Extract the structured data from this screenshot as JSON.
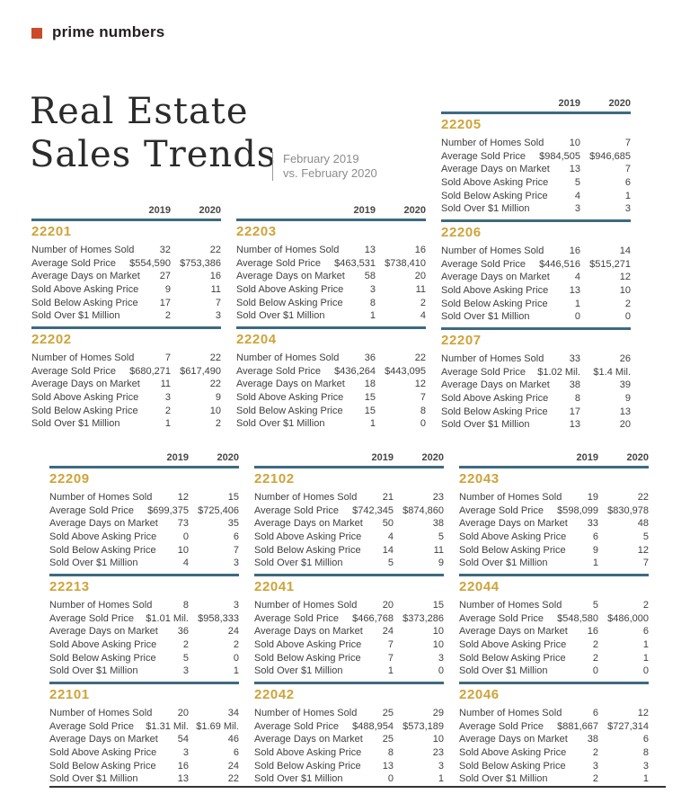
{
  "brand": {
    "logo_text": "prime numbers",
    "logo_color": "#cc4a2a"
  },
  "header": {
    "title_line1": "Real Estate",
    "title_line2": "Sales Trends",
    "subtitle_line1": "February 2019",
    "subtitle_line2": "vs. February 2020"
  },
  "colors": {
    "accent_rule": "#3e6a80",
    "zip_gold": "#cfa339",
    "logo_red": "#cc4a2a"
  },
  "columns": {
    "year1": "2019",
    "year2": "2020"
  },
  "row_labels": [
    "Number of Homes Sold",
    "Average Sold Price",
    "Average Days on Market",
    "Sold Above Asking Price",
    "Sold Below Asking Price",
    "Sold Over $1 Million"
  ],
  "sections": {
    "upper": {
      "columns": [
        {
          "show_years": true,
          "tables": [
            {
              "zip": "22201",
              "values": [
                [
                  "32",
                  "22"
                ],
                [
                  "$554,590",
                  "$753,386"
                ],
                [
                  "27",
                  "16"
                ],
                [
                  "9",
                  "11"
                ],
                [
                  "17",
                  "7"
                ],
                [
                  "2",
                  "3"
                ]
              ]
            },
            {
              "zip": "22202",
              "values": [
                [
                  "7",
                  "22"
                ],
                [
                  "$680,271",
                  "$617,490"
                ],
                [
                  "11",
                  "22"
                ],
                [
                  "3",
                  "9"
                ],
                [
                  "2",
                  "10"
                ],
                [
                  "1",
                  "2"
                ]
              ]
            }
          ]
        },
        {
          "show_years": true,
          "tables": [
            {
              "zip": "22203",
              "values": [
                [
                  "13",
                  "16"
                ],
                [
                  "$463,531",
                  "$738,410"
                ],
                [
                  "58",
                  "20"
                ],
                [
                  "3",
                  "11"
                ],
                [
                  "8",
                  "2"
                ],
                [
                  "1",
                  "4"
                ]
              ]
            },
            {
              "zip": "22204",
              "values": [
                [
                  "36",
                  "22"
                ],
                [
                  "$436,264",
                  "$443,095"
                ],
                [
                  "18",
                  "12"
                ],
                [
                  "15",
                  "7"
                ],
                [
                  "15",
                  "8"
                ],
                [
                  "1",
                  "0"
                ]
              ]
            }
          ]
        },
        {
          "show_years": true,
          "tables": [
            {
              "zip": "22205",
              "values": [
                [
                  "10",
                  "7"
                ],
                [
                  "$984,505",
                  "$946,685"
                ],
                [
                  "13",
                  "7"
                ],
                [
                  "5",
                  "6"
                ],
                [
                  "4",
                  "1"
                ],
                [
                  "3",
                  "3"
                ]
              ]
            },
            {
              "zip": "22206",
              "values": [
                [
                  "16",
                  "14"
                ],
                [
                  "$446,516",
                  "$515,271"
                ],
                [
                  "4",
                  "12"
                ],
                [
                  "13",
                  "10"
                ],
                [
                  "1",
                  "2"
                ],
                [
                  "0",
                  "0"
                ]
              ]
            },
            {
              "zip": "22207",
              "values": [
                [
                  "33",
                  "26"
                ],
                [
                  "$1.02 Mil.",
                  "$1.4 Mil."
                ],
                [
                  "38",
                  "39"
                ],
                [
                  "8",
                  "9"
                ],
                [
                  "17",
                  "13"
                ],
                [
                  "13",
                  "20"
                ]
              ]
            }
          ]
        }
      ]
    },
    "lower": {
      "columns": [
        {
          "show_years": true,
          "tables": [
            {
              "zip": "22209",
              "values": [
                [
                  "12",
                  "15"
                ],
                [
                  "$699,375",
                  "$725,406"
                ],
                [
                  "73",
                  "35"
                ],
                [
                  "0",
                  "6"
                ],
                [
                  "10",
                  "7"
                ],
                [
                  "4",
                  "3"
                ]
              ]
            },
            {
              "zip": "22213",
              "values": [
                [
                  "8",
                  "3"
                ],
                [
                  "$1.01 Mil.",
                  "$958,333"
                ],
                [
                  "36",
                  "24"
                ],
                [
                  "2",
                  "2"
                ],
                [
                  "5",
                  "0"
                ],
                [
                  "3",
                  "1"
                ]
              ]
            },
            {
              "zip": "22101",
              "values": [
                [
                  "20",
                  "34"
                ],
                [
                  "$1.31 Mil.",
                  "$1.69 Mil."
                ],
                [
                  "54",
                  "46"
                ],
                [
                  "3",
                  "6"
                ],
                [
                  "16",
                  "24"
                ],
                [
                  "13",
                  "22"
                ]
              ]
            }
          ]
        },
        {
          "show_years": true,
          "tables": [
            {
              "zip": "22102",
              "values": [
                [
                  "21",
                  "23"
                ],
                [
                  "$742,345",
                  "$874,860"
                ],
                [
                  "50",
                  "38"
                ],
                [
                  "4",
                  "5"
                ],
                [
                  "14",
                  "11"
                ],
                [
                  "5",
                  "9"
                ]
              ]
            },
            {
              "zip": "22041",
              "values": [
                [
                  "20",
                  "15"
                ],
                [
                  "$466,768",
                  "$373,286"
                ],
                [
                  "24",
                  "10"
                ],
                [
                  "7",
                  "10"
                ],
                [
                  "7",
                  "3"
                ],
                [
                  "1",
                  "0"
                ]
              ]
            },
            {
              "zip": "22042",
              "values": [
                [
                  "25",
                  "29"
                ],
                [
                  "$488,954",
                  "$573,189"
                ],
                [
                  "25",
                  "10"
                ],
                [
                  "8",
                  "23"
                ],
                [
                  "13",
                  "3"
                ],
                [
                  "0",
                  "1"
                ]
              ]
            }
          ]
        },
        {
          "show_years": true,
          "tables": [
            {
              "zip": "22043",
              "values": [
                [
                  "19",
                  "22"
                ],
                [
                  "$598,099",
                  "$830,978"
                ],
                [
                  "33",
                  "48"
                ],
                [
                  "6",
                  "5"
                ],
                [
                  "9",
                  "12"
                ],
                [
                  "1",
                  "7"
                ]
              ]
            },
            {
              "zip": "22044",
              "values": [
                [
                  "5",
                  "2"
                ],
                [
                  "$548,580",
                  "$486,000"
                ],
                [
                  "16",
                  "6"
                ],
                [
                  "2",
                  "1"
                ],
                [
                  "2",
                  "1"
                ],
                [
                  "0",
                  "0"
                ]
              ]
            },
            {
              "zip": "22046",
              "values": [
                [
                  "6",
                  "12"
                ],
                [
                  "$881,667",
                  "$727,314"
                ],
                [
                  "38",
                  "6"
                ],
                [
                  "2",
                  "8"
                ],
                [
                  "3",
                  "3"
                ],
                [
                  "2",
                  "1"
                ]
              ]
            }
          ]
        }
      ]
    }
  }
}
